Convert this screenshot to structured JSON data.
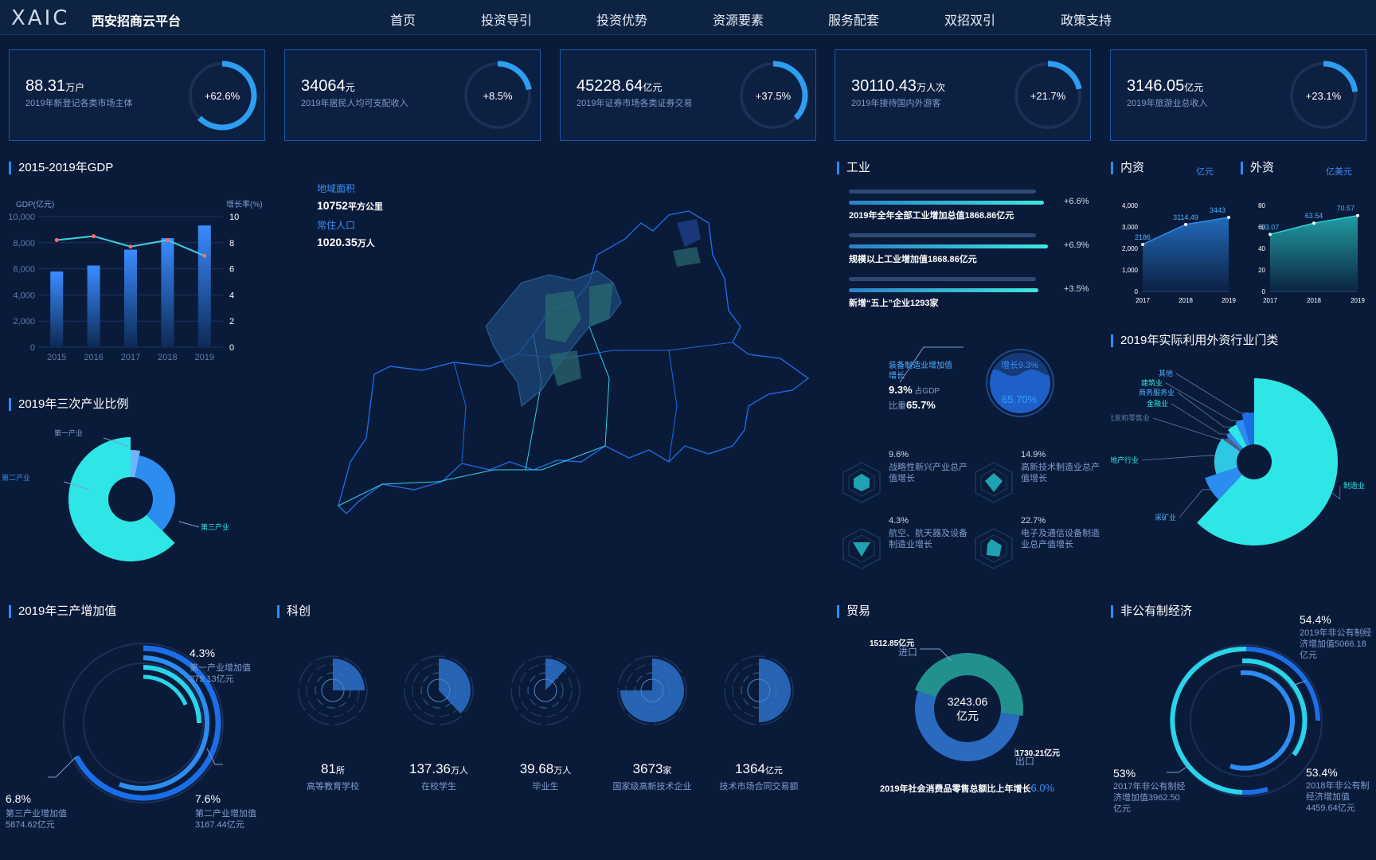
{
  "header": {
    "logo": "XAIC",
    "brand": "西安招商云平台",
    "nav": [
      "首页",
      "投资导引",
      "投资优势",
      "资源要素",
      "服务配套",
      "双招双引",
      "政策支持"
    ]
  },
  "kpis": [
    {
      "value": "88.31",
      "unit": "万户",
      "label": "2019年新登记各类市场主体",
      "percent": "+62.6%",
      "ratio": 0.626
    },
    {
      "value": "34064",
      "unit": "元",
      "label": "2019年居民人均可支配收入",
      "percent": "+8.5%",
      "ratio": 0.22
    },
    {
      "value": "45228.64",
      "unit": "亿元",
      "label": "2019年证券市场各类证券交易",
      "percent": "+37.5%",
      "ratio": 0.375
    },
    {
      "value": "30110.43",
      "unit": "万人次",
      "label": "2019年接待国内外游客",
      "percent": "+21.7%",
      "ratio": 0.217
    },
    {
      "value": "3146.05",
      "unit": "亿元",
      "label": "2019年旅游业总收入",
      "percent": "+23.1%",
      "ratio": 0.231
    }
  ],
  "colors": {
    "cyan": "#2ee6e6",
    "blue": "#2d8cf0",
    "bg": "#0a1b3a"
  },
  "gdp": {
    "title": "2015-2019年GDP",
    "left_unit": "GDP(亿元)",
    "right_unit": "增长率(%)"
  },
  "area": {
    "area_label": "地域面积",
    "area_value": "10752",
    "area_unit": "平方公里",
    "pop_label": "常住人口",
    "pop_value": "1020.35",
    "pop_unit": "万人"
  },
  "industry": {
    "title": "工业",
    "bars": [
      {
        "label": "2019年全年全部工业增加总值1868.86亿元",
        "pct": "+6.6%",
        "ratio": 0.98
      },
      {
        "label": "规模以上工业增加值1868.86亿元",
        "pct": "+6.9%",
        "ratio": 1.0
      },
      {
        "label": "新增“五上”企业1293家",
        "pct": "+3.5%",
        "ratio": 0.95
      }
    ],
    "equip_title": "装备制造业增加值增长",
    "equip_val": "9.3%",
    "equip_gdp_label": "占GDP",
    "equip_share_label": "比重",
    "equip_share": "65.7%",
    "liquid_top": "增长9.3%",
    "liquid_val": "65.70%",
    "items": [
      {
        "pct": "9.6%",
        "label": "战略性新兴产业总产值增长"
      },
      {
        "pct": "14.9%",
        "label": "高新技术制造业总产值增长"
      },
      {
        "pct": "4.3%",
        "label": "航空、航天器及设备制造业增长"
      },
      {
        "pct": "22.7%",
        "label": "电子及通信设备制造业总产值增长"
      }
    ]
  },
  "capital": {
    "inner_title": "内资",
    "inner_unit": "亿元",
    "outer_title": "外资",
    "outer_unit": "亿美元"
  },
  "fdi": {
    "title": "2019年实际利用外资行业门类"
  },
  "tertiary": {
    "title": "2019年三次产业比例"
  },
  "three_value": {
    "title": "2019年三产增加值",
    "items": [
      {
        "pct": "4.3%",
        "name": "第一产业增加值",
        "value": "279.13亿元"
      },
      {
        "pct": "6.8%",
        "name": "第三产业增加值",
        "value": "5874.62亿元"
      },
      {
        "pct": "7.6%",
        "name": "第二产业增加值",
        "value": "3167.44亿元"
      }
    ]
  },
  "tech": {
    "title": "科创",
    "items": [
      {
        "value": "81",
        "unit": "所",
        "label": "高等教育学校",
        "ratio": 0.25
      },
      {
        "value": "137.36",
        "unit": "万人",
        "label": "在校学生",
        "ratio": 0.38
      },
      {
        "value": "39.68",
        "unit": "万人",
        "label": "毕业生",
        "ratio": 0.12
      },
      {
        "value": "3673",
        "unit": "家",
        "label": "国家级高新技术企业",
        "ratio": 0.75
      },
      {
        "value": "1364",
        "unit": "亿元",
        "label": "技术市场合同交易额",
        "ratio": 0.5
      }
    ]
  },
  "trade": {
    "title": "贸易",
    "total": "3243.06",
    "total_unit": "亿元",
    "import_value": "1512.85亿元",
    "import_label": "进口",
    "export_value": "1730.21亿元",
    "export_label": "出口",
    "note": "2019年社会消费品零售总额比上年增长",
    "note_pct": "6.0%"
  },
  "nonpublic": {
    "title": "非公有制经济",
    "items": [
      {
        "pct": "54.4%",
        "text": "2019年非公有制经济增加值5066.18亿元"
      },
      {
        "pct": "53%",
        "text": "2017年非公有制经济增加值3962.50亿元"
      },
      {
        "pct": "53.4%",
        "text": "2018年非公有制经济增加值4459.64亿元"
      }
    ]
  },
  "chart_data": [
    {
      "type": "bar",
      "title": "2015-2019年GDP",
      "categories": [
        "2015",
        "2016",
        "2017",
        "2018",
        "2019"
      ],
      "series": [
        {
          "name": "GDP(亿元)",
          "values": [
            5800,
            6250,
            7470,
            8350,
            9320
          ]
        },
        {
          "name": "增长率(%)",
          "values": [
            8.2,
            8.5,
            7.7,
            8.2,
            7.0
          ]
        }
      ],
      "ylim": [
        0,
        10000
      ],
      "y2lim": [
        0,
        10
      ],
      "yticks": [
        "0",
        "2,000",
        "4,000",
        "6,000",
        "8,000",
        "10,000"
      ],
      "y2ticks": [
        "0",
        "2",
        "4",
        "6",
        "8",
        "10"
      ]
    },
    {
      "type": "pie",
      "title": "2019年三次产业比例",
      "labels": [
        "第一产业",
        "第二产业",
        "第三产业"
      ],
      "values": [
        3.1,
        34.3,
        62.6
      ]
    },
    {
      "type": "area",
      "title": "内资",
      "categories": [
        "2017",
        "2018",
        "2019"
      ],
      "values": [
        2186,
        3114.49,
        3443
      ],
      "value_labels": [
        "2186",
        "3114.49",
        "3443"
      ],
      "ylim": [
        0,
        4000
      ],
      "yticks": [
        "0",
        "1,000",
        "2,000",
        "3,000",
        "4,000"
      ]
    },
    {
      "type": "area",
      "title": "外资",
      "categories": [
        "2017",
        "2018",
        "2019"
      ],
      "values": [
        53.07,
        63.54,
        70.57
      ],
      "value_labels": [
        "53.07",
        "63.54",
        "70.57"
      ],
      "ylim": [
        0,
        80
      ],
      "yticks": [
        "0",
        "20",
        "40",
        "60",
        "80"
      ]
    },
    {
      "type": "pie",
      "title": "2019年实际利用外资行业门类",
      "labels": [
        "制造业",
        "采矿业",
        "房地产行业",
        "批发和零售业",
        "金融业",
        "商务服务业",
        "建筑业",
        "其他"
      ],
      "values": [
        62,
        8,
        15,
        2,
        2,
        4,
        3,
        4
      ]
    },
    {
      "type": "pie",
      "title": "贸易",
      "labels": [
        "进口",
        "出口"
      ],
      "values": [
        1512.85,
        1730.21
      ]
    }
  ]
}
